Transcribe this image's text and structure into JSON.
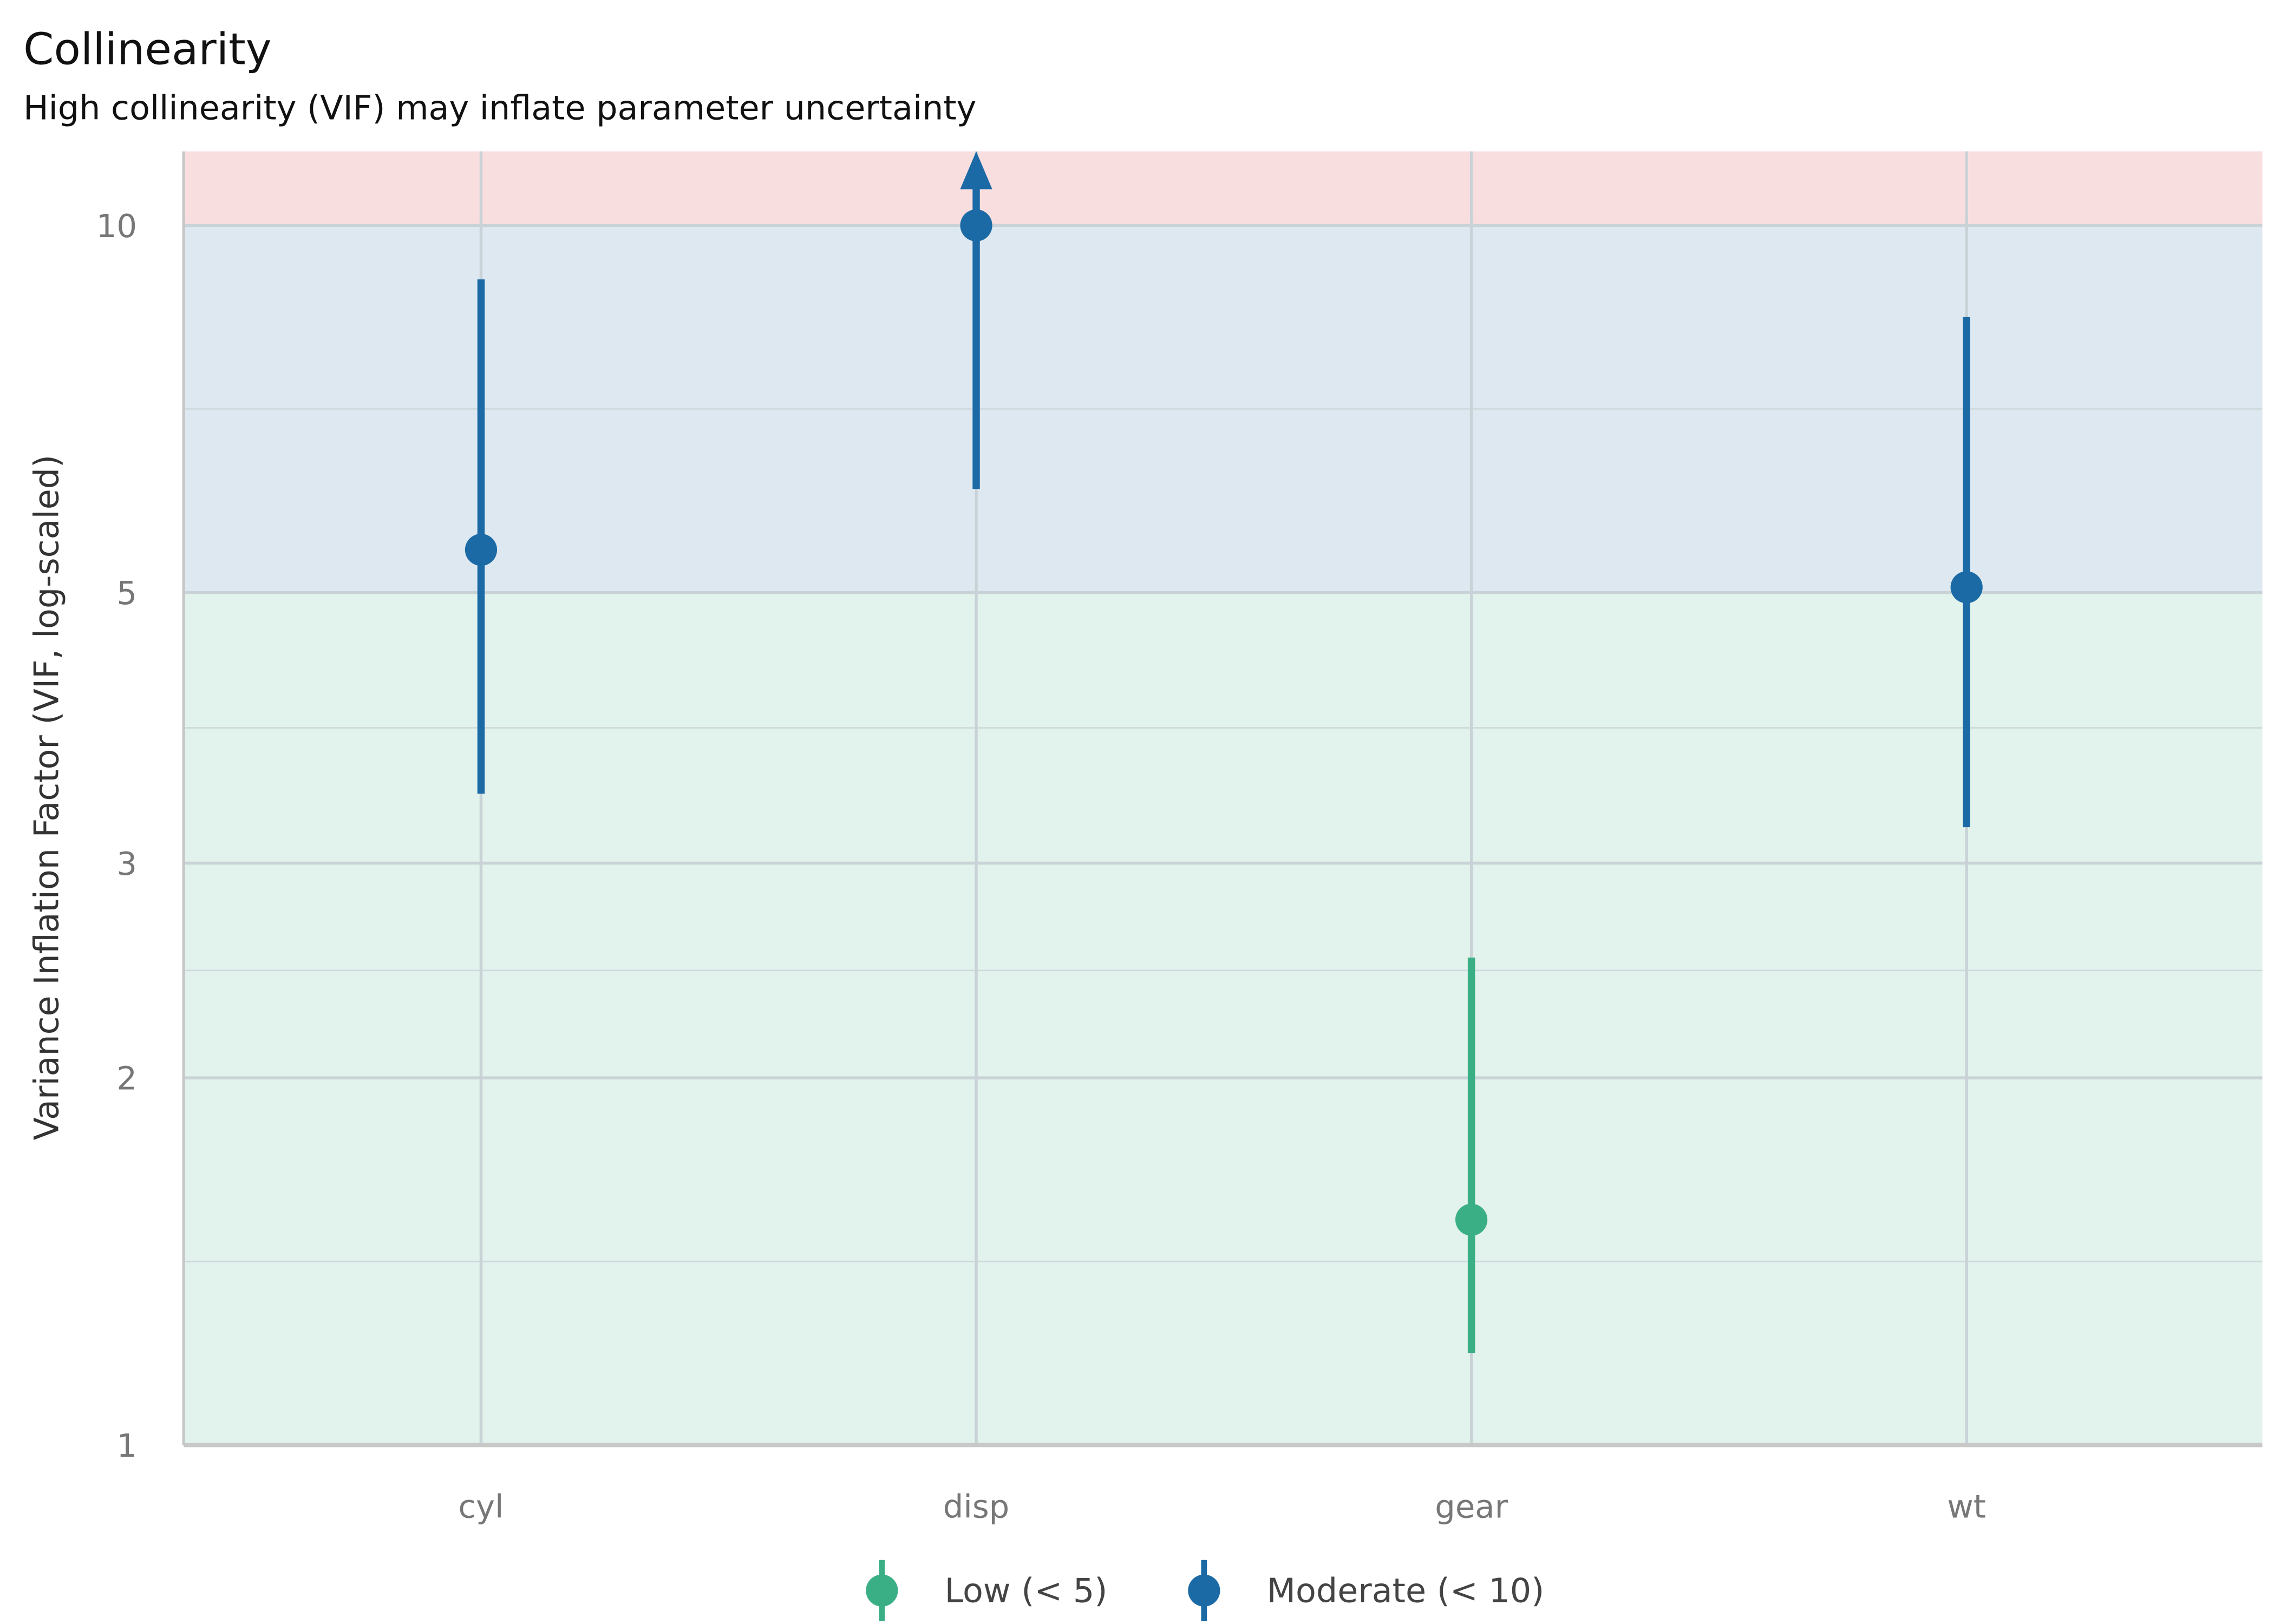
{
  "chart_data": {
    "type": "scatter",
    "title": "Collinearity",
    "subtitle": "High collinearity (VIF) may inflate parameter uncertainty",
    "xlabel": "",
    "ylabel": "Variance Inflation Factor (VIF, log-scaled)",
    "y_scale": "log",
    "ylim": [
      1,
      11.5
    ],
    "y_ticks": [
      1,
      2,
      3,
      5,
      10
    ],
    "y_tick_labels": [
      "1",
      "2",
      "3",
      "5",
      "10"
    ],
    "categories": [
      "cyl",
      "disp",
      "gear",
      "wt"
    ],
    "grid": true,
    "legend_position": "bottom",
    "bands": [
      {
        "from": 1,
        "to": 5,
        "color": "#e2f2ec"
      },
      {
        "from": 5,
        "to": 10,
        "color": "#dde8f1"
      },
      {
        "from": 10,
        "to": 11.5,
        "color": "#f9dee0"
      }
    ],
    "points": [
      {
        "term": "cyl",
        "vif": 5.42,
        "ci_low": 3.42,
        "ci_high": 9.03,
        "group": "Moderate (< 10)"
      },
      {
        "term": "disp",
        "vif": 10.0,
        "ci_low": 6.08,
        "ci_high": null,
        "ci_high_exceeds_axis": true,
        "group": "Moderate (< 10)"
      },
      {
        "term": "gear",
        "vif": 1.53,
        "ci_low": 1.19,
        "ci_high": 2.51,
        "group": "Low (< 5)"
      },
      {
        "term": "wt",
        "vif": 5.05,
        "ci_low": 3.21,
        "ci_high": 8.41,
        "group": "Moderate (< 10)"
      }
    ],
    "legend": [
      {
        "label": "Low (< 5)",
        "color": "#3aaf85"
      },
      {
        "label": "Moderate (< 10)",
        "color": "#1b6aa5"
      }
    ]
  }
}
